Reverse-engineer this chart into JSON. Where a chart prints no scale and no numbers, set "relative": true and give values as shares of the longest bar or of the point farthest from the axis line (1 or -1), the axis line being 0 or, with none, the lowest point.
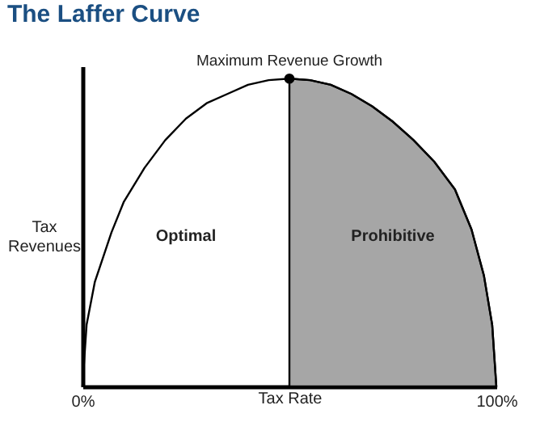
{
  "chart_data": {
    "type": "line",
    "title": "The Laffer Curve",
    "xlabel": "Tax Rate",
    "ylabel": "Tax Revenues",
    "relative": true,
    "grid": false,
    "tick_labels": "x",
    "xlim": [
      0,
      100
    ],
    "xticks": [
      {
        "value": 0,
        "label": "0%"
      },
      {
        "value": 100,
        "label": "100%"
      }
    ],
    "series": [
      {
        "type": "area",
        "color": "#a6a6a6",
        "x": [
          50,
          55,
          60,
          65,
          70,
          75,
          80,
          85,
          90,
          94,
          97,
          99,
          100
        ],
        "values": [
          1,
          0.995,
          0.98,
          0.95,
          0.91,
          0.86,
          0.8,
          0.73,
          0.64,
          0.51,
          0.36,
          0.2,
          0
        ]
      },
      {
        "color": "#000000",
        "x": [
          0,
          1,
          3,
          7,
          10,
          15,
          20,
          25,
          30,
          35,
          40,
          45,
          50,
          55,
          60,
          65,
          70,
          75,
          80,
          85,
          90,
          94,
          97,
          99,
          100
        ],
        "values": [
          0,
          0.2,
          0.34,
          0.5,
          0.6,
          0.71,
          0.8,
          0.87,
          0.92,
          0.95,
          0.98,
          0.995,
          1,
          0.995,
          0.98,
          0.95,
          0.91,
          0.86,
          0.8,
          0.73,
          0.64,
          0.51,
          0.36,
          0.2,
          0
        ]
      },
      {
        "type": "scatter",
        "color": "#000000",
        "x": [
          50
        ],
        "values": [
          1
        ],
        "marker": "circle"
      }
    ],
    "annotations": [
      {
        "text": "Maximum Revenue Growth",
        "x": 50,
        "y": 1
      },
      "Optimal",
      "Prohibitive"
    ]
  }
}
